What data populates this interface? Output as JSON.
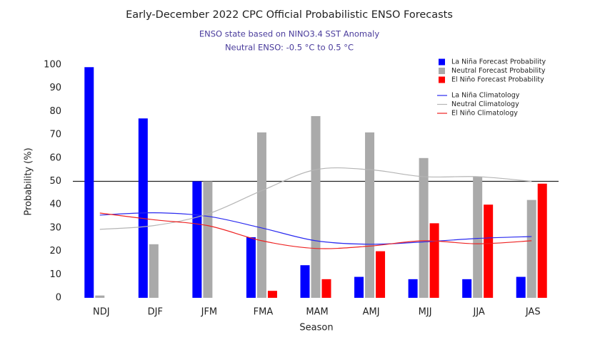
{
  "chart_data": {
    "type": "bar",
    "title": "Early-December 2022 CPC Official Probabilistic ENSO Forecasts",
    "subtitle": [
      "ENSO state based on NINO3.4 SST Anomaly",
      "Neutral ENSO: -0.5 °C to 0.5 °C"
    ],
    "x_label": "Season",
    "y_label": "Probability (%)",
    "categories": [
      "NDJ",
      "DJF",
      "JFM",
      "FMA",
      "MAM",
      "AMJ",
      "MJJ",
      "JJA",
      "JAS"
    ],
    "series": [
      {
        "name": "La Niña Forecast Probability",
        "kind": "bar",
        "color": "#0000ff",
        "values": [
          99,
          77,
          50,
          26,
          14,
          9,
          8,
          8,
          9
        ]
      },
      {
        "name": "Neutral Forecast Probability",
        "kind": "bar",
        "color": "#aaaaaa",
        "values": [
          1,
          23,
          50,
          71,
          78,
          71,
          60,
          52,
          42
        ]
      },
      {
        "name": "El Niño Forecast Probability",
        "kind": "bar",
        "color": "#ff0000",
        "values": [
          0,
          0,
          0,
          3,
          8,
          20,
          32,
          40,
          49
        ]
      },
      {
        "name": "La Niña Climatology",
        "kind": "line",
        "color": "#2a2af0",
        "values": [
          35.5,
          36.5,
          35,
          30,
          24.5,
          23,
          24,
          25.5,
          26.3
        ]
      },
      {
        "name": "Neutral Climatology",
        "kind": "line",
        "color": "#b5b5b5",
        "values": [
          29.4,
          31,
          36,
          46,
          55,
          55,
          52,
          52,
          50
        ]
      },
      {
        "name": "El Niño Climatology",
        "kind": "line",
        "color": "#ee2222",
        "values": [
          36.4,
          33.5,
          31,
          24.5,
          21.2,
          22.2,
          24.5,
          23.2,
          24.5
        ]
      }
    ],
    "reference_line": 50,
    "ylim": [
      0,
      100
    ],
    "yticks": [
      0,
      10,
      20,
      30,
      40,
      50,
      60,
      70,
      80,
      90,
      100
    ],
    "grid": false,
    "legend_position": "top-right"
  }
}
